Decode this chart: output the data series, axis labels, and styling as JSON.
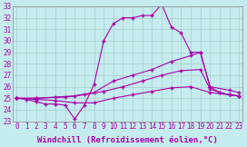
{
  "xlabel": "Windchill (Refroidissement éolien,°C)",
  "background_color": "#c5ecee",
  "grid_color": "#aacccc",
  "line_color": "#aa00aa",
  "ylim": [
    23,
    33
  ],
  "yticks": [
    23,
    24,
    25,
    26,
    27,
    28,
    29,
    30,
    31,
    32,
    33
  ],
  "xlim": [
    0,
    23
  ],
  "xticks": [
    0,
    1,
    2,
    3,
    4,
    5,
    6,
    7,
    8,
    9,
    10,
    11,
    12,
    13,
    14,
    15,
    16,
    17,
    18,
    19,
    20,
    21,
    22,
    23
  ],
  "line1_x": [
    0,
    1,
    2,
    3,
    4,
    5,
    6,
    7,
    8,
    9,
    10,
    11,
    12,
    13,
    14,
    15,
    16,
    17,
    18,
    19,
    20,
    21,
    22,
    23
  ],
  "line1_y": [
    25.0,
    24.9,
    24.7,
    24.5,
    24.5,
    24.4,
    23.2,
    24.4,
    26.2,
    30.0,
    31.5,
    32.0,
    32.0,
    32.2,
    32.2,
    33.2,
    31.2,
    30.7,
    29.0,
    29.0,
    26.0,
    25.5,
    25.3,
    25.2
  ],
  "line2_x": [
    0,
    2,
    4,
    6,
    8,
    10,
    12,
    14,
    16,
    18,
    19,
    20,
    22,
    23
  ],
  "line2_y": [
    25.0,
    25.0,
    25.1,
    25.2,
    25.5,
    26.5,
    27.0,
    27.5,
    28.2,
    28.7,
    29.0,
    26.0,
    25.7,
    25.5
  ],
  "line3_x": [
    0,
    2,
    5,
    7,
    9,
    11,
    13,
    15,
    17,
    19,
    20,
    21,
    22,
    23
  ],
  "line3_y": [
    25.0,
    25.0,
    25.1,
    25.3,
    25.6,
    26.0,
    26.5,
    27.0,
    27.4,
    27.5,
    25.8,
    25.5,
    25.3,
    25.2
  ],
  "line4_x": [
    0,
    2,
    4,
    6,
    8,
    10,
    12,
    14,
    16,
    18,
    20,
    22,
    23
  ],
  "line4_y": [
    25.0,
    24.9,
    24.8,
    24.6,
    24.6,
    25.0,
    25.3,
    25.6,
    25.9,
    26.0,
    25.5,
    25.3,
    25.2
  ],
  "tick_fontsize": 5.5,
  "xlabel_fontsize": 6.5
}
